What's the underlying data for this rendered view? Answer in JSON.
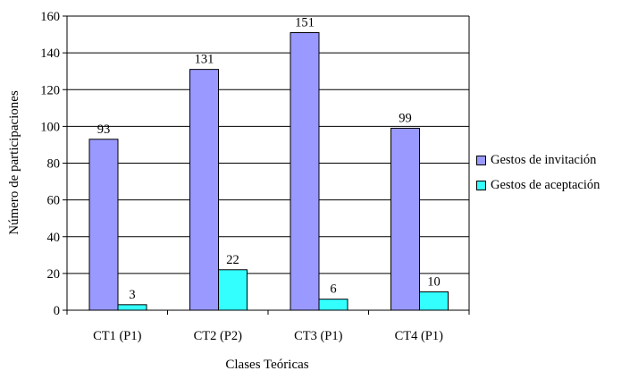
{
  "chart_data": {
    "type": "bar",
    "title": "",
    "xlabel": "Clases Teóricas",
    "ylabel": "Número de participaciones",
    "categories": [
      "CT1 (P1)",
      "CT2 (P2)",
      "CT3 (P1)",
      "CT4 (P1)"
    ],
    "ylim": [
      0,
      160
    ],
    "yticks": [
      0,
      20,
      40,
      60,
      80,
      100,
      120,
      140,
      160
    ],
    "grid": true,
    "legend_position": "right",
    "series": [
      {
        "name": "Gestos de invitación",
        "values": [
          93,
          131,
          151,
          99
        ],
        "color": "#9999ff"
      },
      {
        "name": "Gestos de aceptación",
        "values": [
          3,
          22,
          6,
          10
        ],
        "color": "#33ffff"
      }
    ]
  }
}
